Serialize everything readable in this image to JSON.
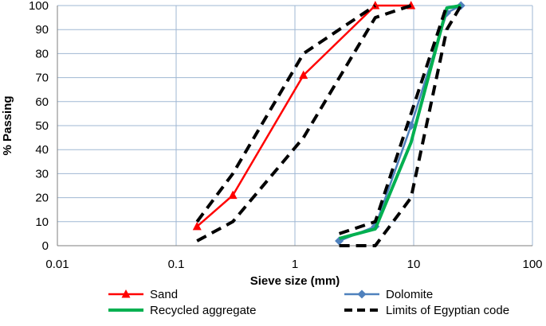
{
  "chart_data": {
    "type": "line",
    "title": "",
    "xlabel": "Sieve size (mm)",
    "ylabel": "% Passing",
    "x_scale": "log",
    "xlim": [
      0.01,
      100
    ],
    "ylim": [
      0,
      100
    ],
    "x_ticks": [
      {
        "value": 0.01,
        "label": "0.01"
      },
      {
        "value": 0.1,
        "label": "0.1"
      },
      {
        "value": 1,
        "label": "1"
      },
      {
        "value": 10,
        "label": "10"
      },
      {
        "value": 100,
        "label": "100"
      }
    ],
    "y_ticks": [
      {
        "value": 0,
        "label": "0"
      },
      {
        "value": 10,
        "label": "10"
      },
      {
        "value": 20,
        "label": "20"
      },
      {
        "value": 30,
        "label": "30"
      },
      {
        "value": 40,
        "label": "40"
      },
      {
        "value": 50,
        "label": "50"
      },
      {
        "value": 60,
        "label": "60"
      },
      {
        "value": 70,
        "label": "70"
      },
      {
        "value": 80,
        "label": "80"
      },
      {
        "value": 90,
        "label": "90"
      },
      {
        "value": 100,
        "label": "100"
      }
    ],
    "grid": "vertical-and-horizontal",
    "legend_position": "bottom",
    "series": [
      {
        "name": "Sand",
        "color": "#ff0000",
        "style": "solid",
        "marker": "triangle",
        "points": [
          {
            "x": 0.15,
            "y": 8
          },
          {
            "x": 0.3,
            "y": 21
          },
          {
            "x": 1.18,
            "y": 71
          },
          {
            "x": 4.75,
            "y": 100
          },
          {
            "x": 9.5,
            "y": 100
          }
        ]
      },
      {
        "name": "Dolomite",
        "color": "#4f81bd",
        "style": "solid",
        "marker": "diamond",
        "points": [
          {
            "x": 2.36,
            "y": 2
          },
          {
            "x": 4.75,
            "y": 8
          },
          {
            "x": 9.5,
            "y": 50
          },
          {
            "x": 19,
            "y": 97
          },
          {
            "x": 25,
            "y": 100
          }
        ]
      },
      {
        "name": "Recycled aggregate",
        "color": "#00b050",
        "style": "solid",
        "marker": "none",
        "points": [
          {
            "x": 2.36,
            "y": 3
          },
          {
            "x": 4.75,
            "y": 7
          },
          {
            "x": 9.5,
            "y": 43
          },
          {
            "x": 19,
            "y": 99
          },
          {
            "x": 25,
            "y": 100
          }
        ]
      },
      {
        "name": "Limits of Egyptian code",
        "color": "#000000",
        "style": "dashed",
        "marker": "none",
        "segments": [
          [
            {
              "x": 0.15,
              "y": 10
            },
            {
              "x": 0.3,
              "y": 30
            },
            {
              "x": 1.18,
              "y": 80
            },
            {
              "x": 2.36,
              "y": 90
            },
            {
              "x": 4.75,
              "y": 100
            }
          ],
          [
            {
              "x": 0.15,
              "y": 2
            },
            {
              "x": 0.3,
              "y": 10
            },
            {
              "x": 1.18,
              "y": 45
            },
            {
              "x": 4.75,
              "y": 95
            },
            {
              "x": 9.5,
              "y": 100
            }
          ],
          [
            {
              "x": 2.36,
              "y": 5
            },
            {
              "x": 4.75,
              "y": 10
            },
            {
              "x": 9.5,
              "y": 55
            },
            {
              "x": 19,
              "y": 100
            }
          ],
          [
            {
              "x": 2.36,
              "y": 0
            },
            {
              "x": 4.75,
              "y": 0
            },
            {
              "x": 9.5,
              "y": 20
            },
            {
              "x": 19,
              "y": 90
            },
            {
              "x": 25,
              "y": 100
            }
          ]
        ]
      }
    ]
  }
}
